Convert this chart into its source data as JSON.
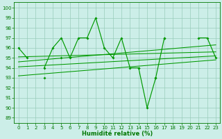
{
  "xlabel": "Humidité relative (%)",
  "bg_color": "#cceee8",
  "grid_color": "#99ccbb",
  "line_color": "#009900",
  "xlim": [
    -0.5,
    23.5
  ],
  "ylim": [
    88.5,
    100.6
  ],
  "yticks": [
    89,
    90,
    91,
    92,
    93,
    94,
    95,
    96,
    97,
    98,
    99,
    100
  ],
  "xticks": [
    0,
    1,
    2,
    3,
    4,
    5,
    6,
    7,
    8,
    9,
    10,
    11,
    12,
    13,
    14,
    15,
    16,
    17,
    18,
    19,
    20,
    21,
    22,
    23
  ],
  "line_main": [
    96,
    95,
    null,
    94,
    96,
    97,
    95,
    97,
    97,
    99,
    96,
    95,
    97,
    94,
    94,
    null,
    null,
    97,
    null,
    null,
    null,
    97,
    97,
    95
  ],
  "line_dip": [
    null,
    null,
    null,
    null,
    null,
    null,
    null,
    null,
    null,
    null,
    null,
    null,
    null,
    null,
    94,
    90,
    93,
    97,
    null,
    null,
    null,
    null,
    null,
    null
  ],
  "line_low": [
    null,
    null,
    null,
    93,
    null,
    95,
    null,
    null,
    null,
    null,
    null,
    null,
    null,
    null,
    null,
    null,
    93,
    null,
    null,
    null,
    null,
    null,
    null,
    null
  ],
  "trend1_pts": [
    94.1,
    95.2
  ],
  "trend2_pts": [
    94.6,
    96.3
  ],
  "trend3_pts": [
    93.2,
    94.8
  ],
  "trend4_pts": [
    95.1,
    95.6
  ]
}
